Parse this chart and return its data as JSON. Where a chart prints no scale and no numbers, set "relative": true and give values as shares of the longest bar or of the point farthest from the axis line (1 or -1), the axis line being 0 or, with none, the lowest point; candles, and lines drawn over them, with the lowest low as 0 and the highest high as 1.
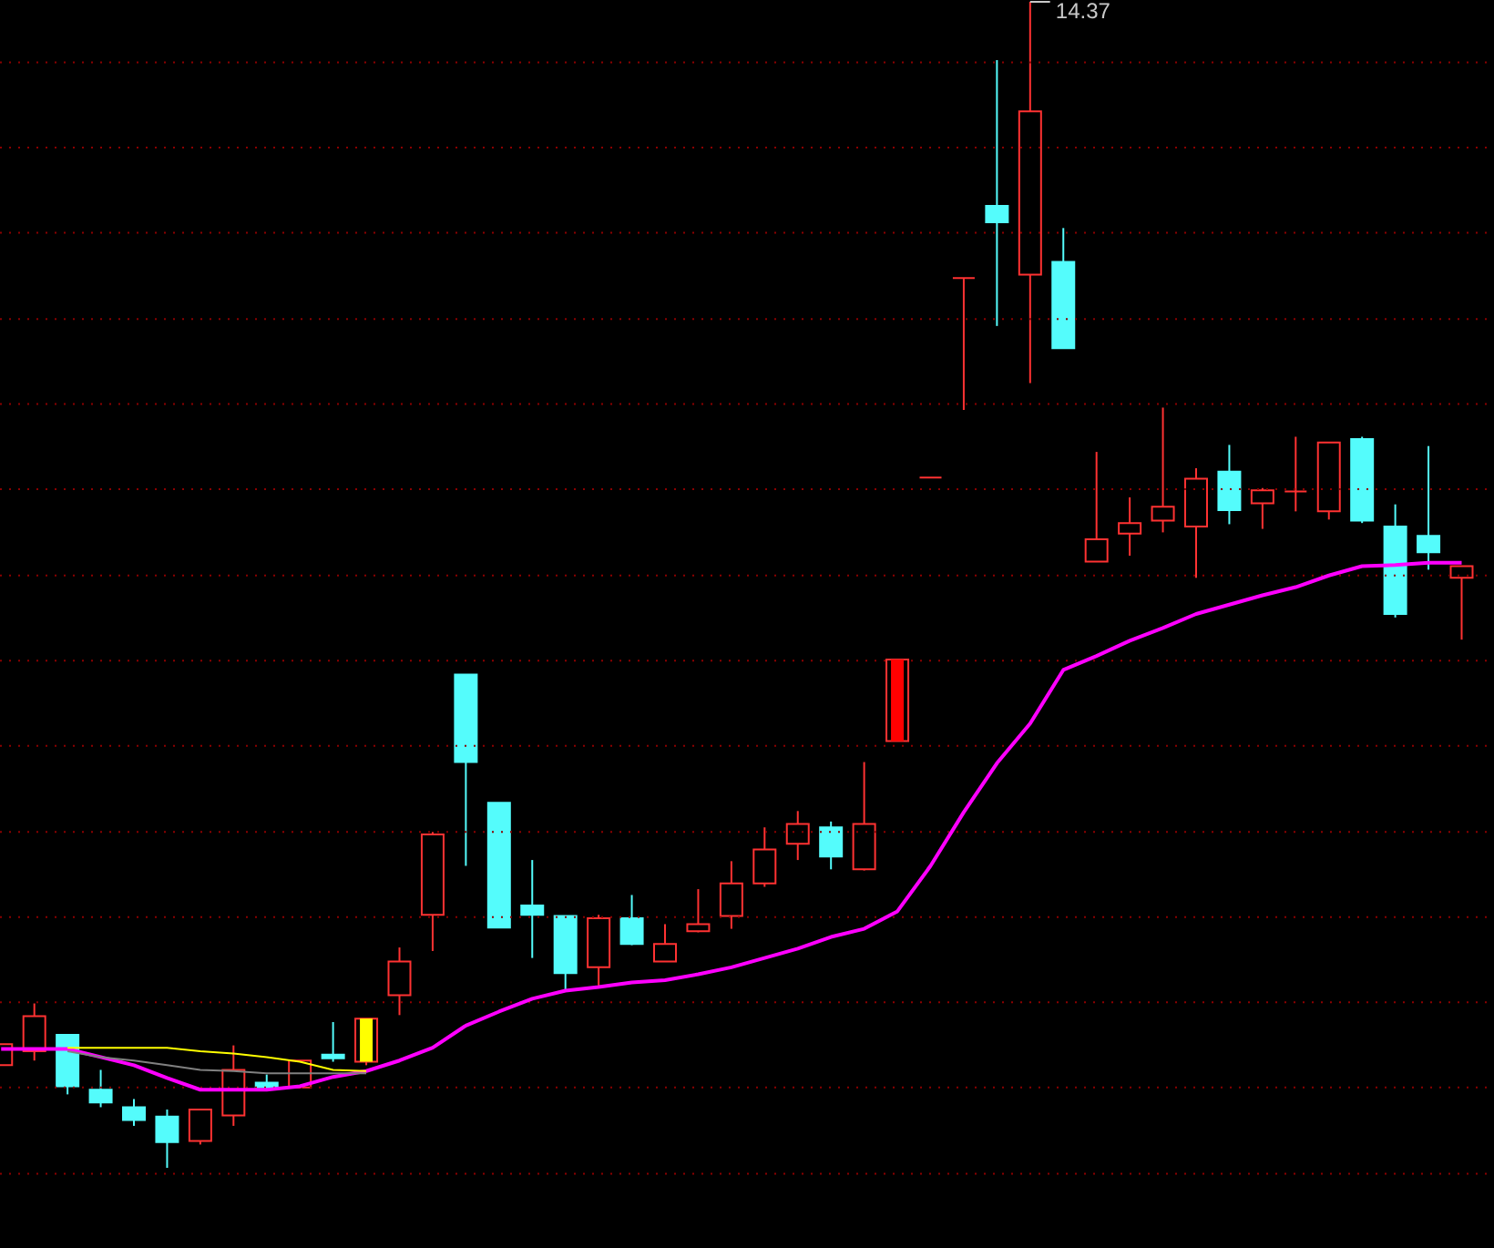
{
  "chart_data": {
    "type": "candlestick",
    "relative": true,
    "ref_lines": [
      {
        "axis": "y",
        "value": 0.948,
        "color": "#8c0000",
        "line_style": "dotted"
      },
      {
        "axis": "y",
        "value": 0.875,
        "color": "#8c0000",
        "line_style": "dotted"
      },
      {
        "axis": "y",
        "value": 0.802,
        "color": "#8c0000",
        "line_style": "dotted"
      },
      {
        "axis": "y",
        "value": 0.728,
        "color": "#8c0000",
        "line_style": "dotted"
      },
      {
        "axis": "y",
        "value": 0.655,
        "color": "#8c0000",
        "line_style": "dotted"
      },
      {
        "axis": "y",
        "value": 0.582,
        "color": "#8c0000",
        "line_style": "dotted"
      },
      {
        "axis": "y",
        "value": 0.508,
        "color": "#8c0000",
        "line_style": "dotted"
      },
      {
        "axis": "y",
        "value": 0.435,
        "color": "#8c0000",
        "line_style": "dotted"
      },
      {
        "axis": "y",
        "value": 0.362,
        "color": "#8c0000",
        "line_style": "dotted"
      },
      {
        "axis": "y",
        "value": 0.288,
        "color": "#8c0000",
        "line_style": "dotted"
      },
      {
        "axis": "y",
        "value": 0.215,
        "color": "#8c0000",
        "line_style": "dotted"
      },
      {
        "axis": "y",
        "value": 0.142,
        "color": "#8c0000",
        "line_style": "dotted"
      },
      {
        "axis": "y",
        "value": 0.069,
        "color": "#8c0000",
        "line_style": "dotted"
      },
      {
        "axis": "y",
        "value": -0.005,
        "color": "#8c0000",
        "line_style": "dotted"
      }
    ],
    "categories": [
      null,
      null,
      null,
      null,
      null,
      null,
      null,
      null,
      null,
      null,
      null,
      null,
      null,
      null,
      null,
      null,
      null,
      null,
      null,
      null,
      null,
      null,
      null,
      null,
      null,
      null,
      null,
      null,
      null,
      null,
      null,
      null,
      null,
      null,
      null,
      null,
      null,
      null,
      null,
      null,
      null,
      null,
      null,
      null,
      null
    ],
    "ohlc": [
      [
        0.088,
        0.106,
        0.088,
        0.106
      ],
      [
        0.1,
        0.141,
        0.092,
        0.13
      ],
      [
        0.114,
        0.114,
        0.063,
        0.07
      ],
      [
        0.067,
        0.084,
        0.052,
        0.056
      ],
      [
        0.052,
        0.059,
        0.036,
        0.041
      ],
      [
        0.044,
        0.05,
        0,
        0.022
      ],
      [
        0.023,
        0.05,
        0.02,
        0.05
      ],
      [
        0.045,
        0.105,
        0.036,
        0.084
      ],
      [
        0.073,
        0.08,
        0.067,
        0.069
      ],
      [
        0.069,
        0.092,
        0.069,
        0.092
      ],
      [
        0.097,
        0.125,
        0.091,
        0.094
      ],
      [
        0.091,
        0.128,
        0.088,
        0.128
      ],
      [
        0.148,
        0.189,
        0.131,
        0.177
      ],
      [
        0.217,
        0.288,
        0.186,
        0.286
      ],
      [
        0.423,
        0.423,
        0.259,
        0.348
      ],
      [
        0.313,
        0.313,
        0.206,
        0.206
      ],
      [
        0.225,
        0.264,
        0.18,
        0.217
      ],
      [
        0.216,
        0.216,
        0.152,
        0.167
      ],
      [
        0.172,
        0.217,
        0.155,
        0.214
      ],
      [
        0.214,
        0.234,
        0.191,
        0.192
      ],
      [
        0.177,
        0.209,
        0.177,
        0.192
      ],
      [
        0.203,
        0.239,
        0.202,
        0.209
      ],
      [
        0.216,
        0.263,
        0.205,
        0.244
      ],
      [
        0.244,
        0.292,
        0.241,
        0.273
      ],
      [
        0.278,
        0.306,
        0.264,
        0.295
      ],
      [
        0.292,
        0.297,
        0.256,
        0.267
      ],
      [
        0.256,
        0.348,
        0.255,
        0.295
      ],
      [
        0.366,
        0.436,
        0.366,
        0.436
      ],
      [
        0.592,
        0.592,
        0.592,
        0.592
      ],
      [
        0.763,
        0.763,
        0.65,
        0.763
      ],
      [
        0.825,
        0.95,
        0.722,
        0.811
      ],
      [
        0.766,
        1,
        0.673,
        0.906
      ],
      [
        0.777,
        0.806,
        0.703,
        0.703
      ],
      [
        0.52,
        0.614,
        0.52,
        0.539
      ],
      [
        0.544,
        0.575,
        0.525,
        0.553
      ],
      [
        0.555,
        0.652,
        0.545,
        0.567
      ],
      [
        0.55,
        0.6,
        0.506,
        0.591
      ],
      [
        0.597,
        0.62,
        0.552,
        0.564
      ],
      [
        0.57,
        0.583,
        0.548,
        0.581
      ],
      [
        0.58,
        0.627,
        0.563,
        0.58
      ],
      [
        0.563,
        0.622,
        0.556,
        0.622
      ],
      [
        0.625,
        0.627,
        0.553,
        0.555
      ],
      [
        0.55,
        0.569,
        0.472,
        0.475
      ],
      [
        0.542,
        0.619,
        0.513,
        0.528
      ],
      [
        0.506,
        0.516,
        0.453,
        0.516
      ]
    ],
    "colors": [
      "#ff3232",
      "#ff3232",
      "#54fcfc",
      "#54fcfc",
      "#54fcfc",
      "#54fcfc",
      "#ff3232",
      "#ff3232",
      "#54fcfc",
      "#ff3232",
      "#54fcfc",
      "#ff3232",
      "#ff3232",
      "#ff3232",
      "#54fcfc",
      "#54fcfc",
      "#54fcfc",
      "#54fcfc",
      "#ff3232",
      "#54fcfc",
      "#ff3232",
      "#ff3232",
      "#ff3232",
      "#ff3232",
      "#ff3232",
      "#54fcfc",
      "#ff3232",
      "#ff3232",
      "#ff3232",
      "#ff3232",
      "#54fcfc",
      "#ff3232",
      "#54fcfc",
      "#ff3232",
      "#ff3232",
      "#ff3232",
      "#ff3232",
      "#54fcfc",
      "#ff3232",
      "#ff3232",
      "#ff3232",
      "#54fcfc",
      "#54fcfc",
      "#54fcfc",
      "#ff3232"
    ],
    "annotations": [
      "14.37"
    ],
    "series": [
      {
        "type": "line",
        "color": "#ff00ff",
        "values": [
          0.102,
          0.102,
          0.102,
          0.095,
          0.088,
          0.077,
          0.067,
          0.067,
          0.067,
          0.07,
          0.078,
          0.083,
          0.092,
          0.103,
          0.122,
          0.134,
          0.145,
          0.152,
          0.155,
          0.159,
          0.161,
          0.166,
          0.172,
          0.18,
          0.188,
          0.198,
          0.205,
          0.22,
          0.259,
          0.305,
          0.347,
          0.381,
          0.427,
          0.439,
          0.452,
          0.463,
          0.475,
          0.483,
          0.491,
          0.498,
          0.508,
          0.516,
          0.517,
          0.519,
          0.519
        ]
      },
      {
        "type": "line",
        "color": "#ffff00",
        "values": [
          null,
          null,
          0.103,
          0.103,
          0.103,
          0.103,
          0.1,
          0.098,
          0.095,
          0.091,
          0.084,
          0.083,
          null,
          null,
          null,
          null,
          null,
          null,
          null,
          null,
          null,
          null,
          null,
          null,
          null,
          null,
          null,
          null,
          null,
          null,
          null,
          null,
          null,
          null,
          null,
          null,
          null,
          null,
          null,
          null,
          null,
          null,
          null,
          null,
          null
        ]
      },
      {
        "type": "line",
        "color": "#808080",
        "values": [
          null,
          null,
          0.1,
          0.095,
          0.092,
          0.088,
          0.084,
          0.083,
          0.081,
          0.081,
          0.081,
          0.081,
          null,
          null,
          null,
          null,
          null,
          null,
          null,
          null,
          null,
          null,
          null,
          null,
          null,
          null,
          null,
          null,
          null,
          null,
          null,
          null,
          null,
          null,
          null,
          null,
          null,
          null,
          null,
          null,
          null,
          null,
          null,
          null,
          null
        ]
      },
      {
        "type": "bar",
        "colors": [
          null,
          null,
          null,
          null,
          null,
          null,
          null,
          null,
          null,
          null,
          null,
          "#ffff00",
          null,
          null,
          null,
          null,
          null,
          null,
          null,
          null,
          null,
          null,
          null,
          null,
          null,
          null,
          null,
          "#ff0000",
          null,
          null,
          null,
          null,
          null,
          null,
          null,
          null,
          null,
          null,
          null,
          null,
          null,
          null,
          null,
          null,
          null
        ],
        "base": [
          null,
          null,
          null,
          null,
          null,
          null,
          null,
          null,
          null,
          null,
          null,
          0.091,
          null,
          null,
          null,
          null,
          null,
          null,
          null,
          null,
          null,
          null,
          null,
          null,
          null,
          null,
          null,
          0.366,
          null,
          null,
          null,
          null,
          null,
          null,
          null,
          null,
          null,
          null,
          null,
          null,
          null,
          null,
          null,
          null,
          null
        ],
        "values": [
          null,
          null,
          null,
          null,
          null,
          null,
          null,
          null,
          null,
          null,
          null,
          0.037,
          null,
          null,
          null,
          null,
          null,
          null,
          null,
          null,
          null,
          null,
          null,
          null,
          null,
          null,
          null,
          0.07,
          null,
          null,
          null,
          null,
          null,
          null,
          null,
          null,
          null,
          null,
          null,
          null,
          null,
          null,
          null,
          null,
          null
        ]
      }
    ]
  }
}
